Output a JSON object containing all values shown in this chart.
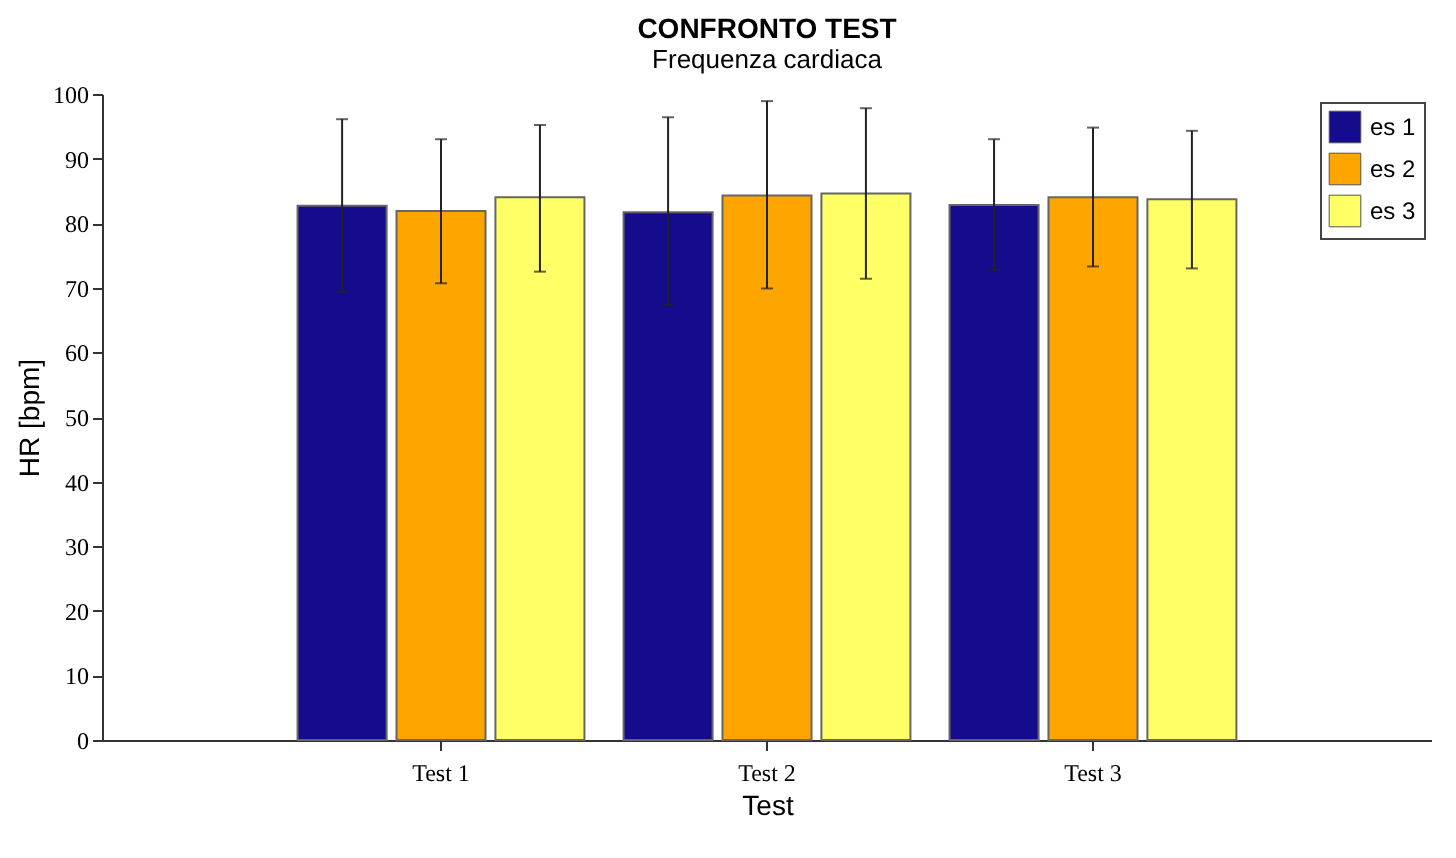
{
  "chart_data": {
    "type": "bar",
    "title": "CONFRONTO TEST",
    "subtitle": "Frequenza cardiaca",
    "xlabel": "Test",
    "ylabel": "HR [bpm]",
    "categories": [
      "Test 1",
      "Test 2",
      "Test 3"
    ],
    "series": [
      {
        "name": "es 1",
        "color": "#140c8c",
        "values": [
          82.7,
          81.7,
          82.8
        ],
        "errors": [
          [
            69.4,
            96.1
          ],
          [
            67.3,
            96.4
          ],
          [
            72.8,
            93.0
          ]
        ]
      },
      {
        "name": "es 2",
        "color": "#ffa500",
        "values": [
          81.9,
          84.3,
          84.0
        ],
        "errors": [
          [
            70.7,
            93.0
          ],
          [
            69.9,
            98.9
          ],
          [
            73.3,
            94.8
          ]
        ]
      },
      {
        "name": "es 3",
        "color": "#ffff66",
        "values": [
          84.0,
          84.6,
          83.7
        ],
        "errors": [
          [
            72.5,
            95.2
          ],
          [
            71.4,
            97.8
          ],
          [
            73.0,
            94.3
          ]
        ]
      }
    ],
    "ylim": [
      0,
      100
    ],
    "yticks": [
      0,
      10,
      20,
      30,
      40,
      50,
      60,
      70,
      80,
      90,
      100
    ],
    "legend": "top right"
  }
}
